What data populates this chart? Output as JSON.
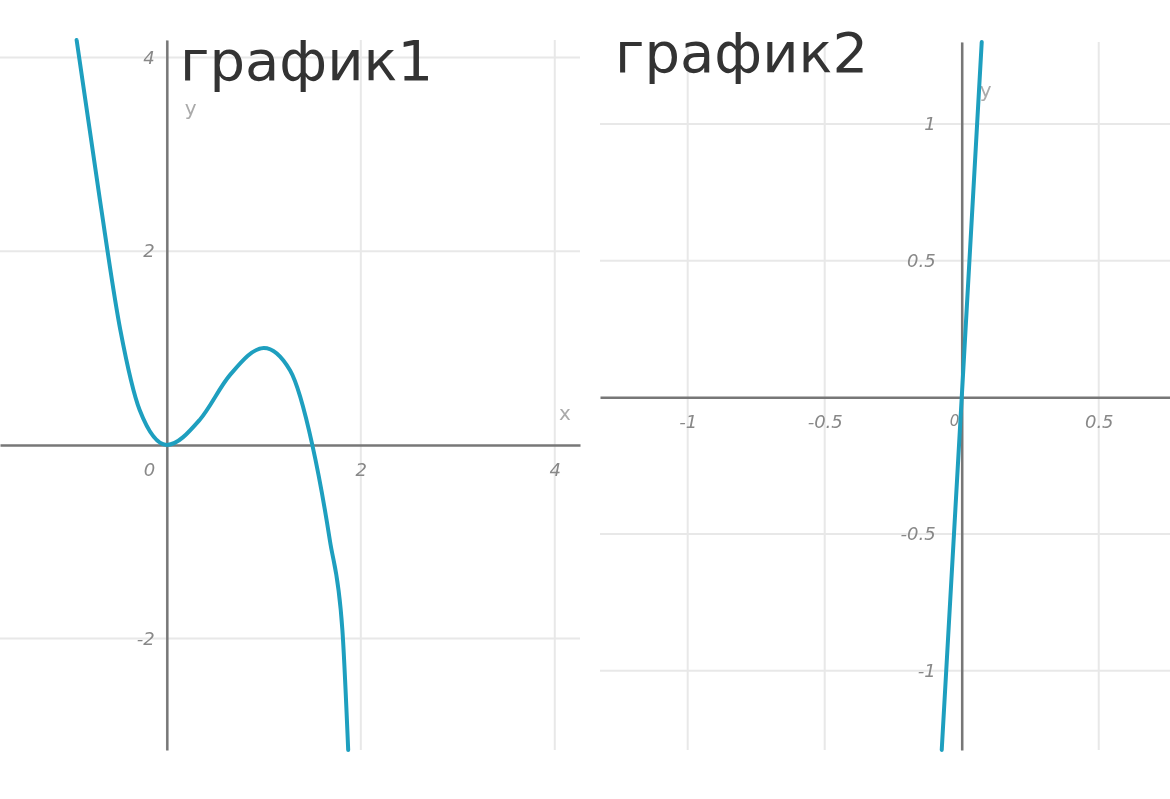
{
  "chart_data": [
    {
      "type": "line",
      "title": "график1",
      "xlabel": "x",
      "ylabel": "y",
      "color": "#1e9fbf",
      "grid": true,
      "x": [
        -0.93,
        -0.69,
        -0.48,
        -0.28,
        0,
        0.34,
        0.65,
        1.0,
        1.27,
        1.5,
        1.68,
        1.81,
        1.87
      ],
      "values": [
        4.18,
        2.53,
        1.19,
        0.36,
        0,
        0.26,
        0.72,
        1.0,
        0.77,
        0,
        -0.98,
        -1.91,
        -3.15
      ],
      "xlim": [
        -1.72,
        4.26
      ],
      "ylim": [
        -3.15,
        4.18
      ],
      "xticks": [
        0,
        2,
        4
      ],
      "yticks": [
        -2,
        2,
        4
      ]
    },
    {
      "type": "line",
      "title": "график2",
      "ylabel": "y",
      "color": "#1e9fbf",
      "grid": true,
      "x": [
        -0.073,
        0,
        0.073
      ],
      "values": [
        -1.29,
        0,
        1.3
      ],
      "xlim": [
        -1.32,
        0.76
      ],
      "ylim": [
        -1.29,
        1.3
      ],
      "xticks": [
        -1,
        -0.5,
        0,
        0.5
      ],
      "yticks": [
        -1,
        -0.5,
        0.5,
        1
      ]
    }
  ]
}
